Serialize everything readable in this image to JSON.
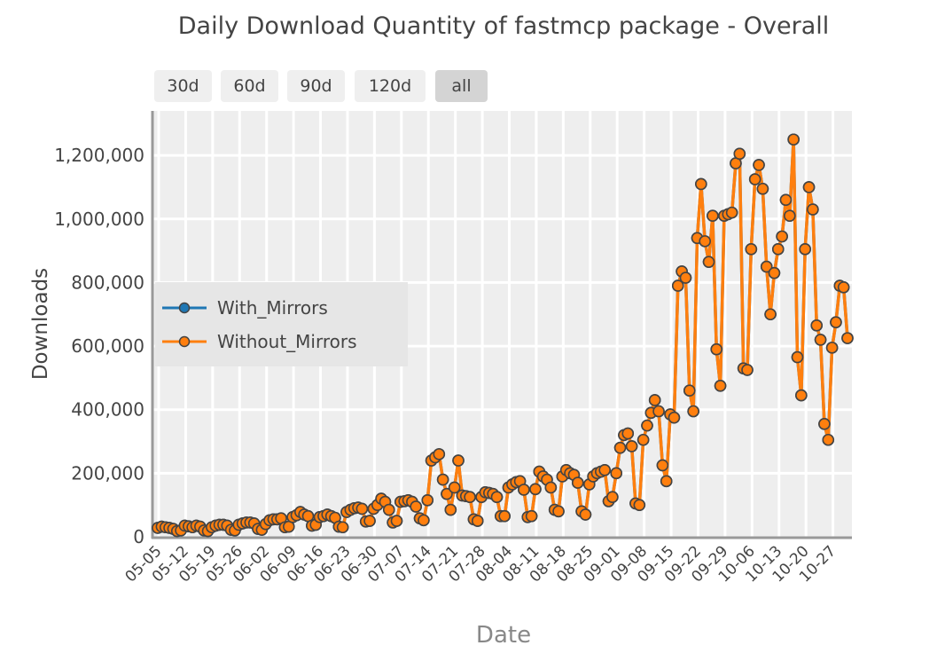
{
  "chart_data": {
    "type": "line",
    "title": "Daily Download Quantity of fastmcp package - Overall",
    "xlabel": "Date",
    "ylabel": "Downloads",
    "ylim": [
      0,
      1340000
    ],
    "yticks": [
      0,
      200000,
      400000,
      600000,
      800000,
      1000000,
      1200000
    ],
    "ytick_labels": [
      "0",
      "200,000",
      "400,000",
      "600,000",
      "800,000",
      "1,000,000",
      "1,200,000"
    ],
    "xtick_labels": [
      "05-05",
      "05-12",
      "05-19",
      "05-26",
      "06-02",
      "06-09",
      "06-16",
      "06-23",
      "06-30",
      "07-07",
      "07-14",
      "07-21",
      "07-28",
      "08-04",
      "08-11",
      "08-18",
      "08-25",
      "09-01",
      "09-08",
      "09-15",
      "09-22",
      "09-29",
      "10-06",
      "10-13",
      "10-20",
      "10-27"
    ],
    "grid": true,
    "legend_position": "left-middle",
    "x": [
      "05-05",
      "05-06",
      "05-07",
      "05-08",
      "05-09",
      "05-10",
      "05-11",
      "05-12",
      "05-13",
      "05-14",
      "05-15",
      "05-16",
      "05-17",
      "05-18",
      "05-19",
      "05-20",
      "05-21",
      "05-22",
      "05-23",
      "05-24",
      "05-25",
      "05-26",
      "05-27",
      "05-28",
      "05-29",
      "05-30",
      "05-31",
      "06-01",
      "06-02",
      "06-03",
      "06-04",
      "06-05",
      "06-06",
      "06-07",
      "06-08",
      "06-09",
      "06-10",
      "06-11",
      "06-12",
      "06-13",
      "06-14",
      "06-15",
      "06-16",
      "06-17",
      "06-18",
      "06-19",
      "06-20",
      "06-21",
      "06-22",
      "06-23",
      "06-24",
      "06-25",
      "06-26",
      "06-27",
      "06-28",
      "06-29",
      "06-30",
      "07-01",
      "07-02",
      "07-03",
      "07-04",
      "07-05",
      "07-06",
      "07-07",
      "07-08",
      "07-09",
      "07-10",
      "07-11",
      "07-12",
      "07-13",
      "07-14",
      "07-15",
      "07-16",
      "07-17",
      "07-18",
      "07-19",
      "07-20",
      "07-21",
      "07-22",
      "07-23",
      "07-24",
      "07-25",
      "07-26",
      "07-27",
      "07-28",
      "07-29",
      "07-30",
      "07-31",
      "08-01",
      "08-02",
      "08-03",
      "08-04",
      "08-05",
      "08-06",
      "08-07",
      "08-08",
      "08-09",
      "08-10",
      "08-11",
      "08-12",
      "08-13",
      "08-14",
      "08-15",
      "08-16",
      "08-17",
      "08-18",
      "08-19",
      "08-20",
      "08-21",
      "08-22",
      "08-23",
      "08-24",
      "08-25",
      "08-26",
      "08-27",
      "08-28",
      "08-29",
      "08-30",
      "08-31",
      "09-01",
      "09-02",
      "09-03",
      "09-04",
      "09-05",
      "09-06",
      "09-07",
      "09-08",
      "09-09",
      "09-10",
      "09-11",
      "09-12",
      "09-13",
      "09-14",
      "09-15",
      "09-16",
      "09-17",
      "09-18",
      "09-19",
      "09-20",
      "09-21",
      "09-22",
      "09-23",
      "09-24",
      "09-25",
      "09-26",
      "09-27",
      "09-28",
      "09-29",
      "09-30",
      "10-01",
      "10-02",
      "10-03",
      "10-04",
      "10-05",
      "10-06",
      "10-07",
      "10-08",
      "10-09",
      "10-10",
      "10-11",
      "10-12",
      "10-13",
      "10-14",
      "10-15",
      "10-16",
      "10-17",
      "10-18",
      "10-19",
      "10-20",
      "10-21",
      "10-22",
      "10-23",
      "10-24",
      "10-25",
      "10-26",
      "10-27",
      "10-28",
      "10-29",
      "10-30",
      "10-31"
    ],
    "series": [
      {
        "name": "With_Mirrors",
        "color": "#1f77b4",
        "values": [
          28000,
          32000,
          30000,
          28000,
          25000,
          18000,
          20000,
          35000,
          33000,
          30000,
          35000,
          32000,
          20000,
          18000,
          30000,
          35000,
          38000,
          38000,
          35000,
          22000,
          20000,
          38000,
          42000,
          45000,
          45000,
          42000,
          25000,
          22000,
          40000,
          52000,
          55000,
          55000,
          58000,
          30000,
          32000,
          62000,
          68000,
          78000,
          70000,
          65000,
          35000,
          38000,
          62000,
          65000,
          70000,
          65000,
          60000,
          32000,
          30000,
          78000,
          85000,
          90000,
          92000,
          88000,
          48000,
          50000,
          88000,
          100000,
          120000,
          110000,
          85000,
          45000,
          50000,
          110000,
          112000,
          115000,
          110000,
          95000,
          58000,
          52000,
          115000,
          240000,
          250000,
          260000,
          180000,
          135000,
          85000,
          155000,
          240000,
          130000,
          128000,
          125000,
          55000,
          50000,
          125000,
          140000,
          138000,
          135000,
          125000,
          65000,
          65000,
          155000,
          165000,
          172000,
          175000,
          148000,
          62000,
          65000,
          150000,
          205000,
          190000,
          180000,
          155000,
          85000,
          80000,
          190000,
          210000,
          200000,
          195000,
          170000,
          80000,
          70000,
          165000,
          190000,
          200000,
          205000,
          210000,
          112000,
          125000,
          200000,
          280000,
          320000,
          325000,
          285000,
          105000,
          100000,
          305000,
          350000,
          390000,
          430000,
          395000,
          225000,
          175000,
          385000,
          375000,
          790000,
          835000,
          815000,
          460000,
          395000,
          940000,
          1110000,
          930000,
          865000,
          1010000,
          590000,
          475000,
          1010000,
          1015000,
          1020000,
          1175000,
          1205000,
          530000,
          525000,
          905000,
          1125000,
          1170000,
          1095000,
          850000,
          700000,
          830000,
          905000,
          945000,
          1060000,
          1010000,
          1250000,
          565000,
          445000,
          905000,
          1100000,
          1030000,
          665000,
          620000,
          355000,
          305000,
          595000,
          675000,
          790000,
          785000,
          625000
        ]
      },
      {
        "name": "Without_Mirrors",
        "color": "#ff7f0e",
        "values": [
          28000,
          32000,
          30000,
          28000,
          25000,
          18000,
          20000,
          35000,
          33000,
          30000,
          35000,
          32000,
          20000,
          18000,
          30000,
          35000,
          38000,
          38000,
          35000,
          22000,
          20000,
          38000,
          42000,
          45000,
          45000,
          42000,
          25000,
          22000,
          40000,
          52000,
          55000,
          55000,
          58000,
          30000,
          32000,
          62000,
          68000,
          78000,
          70000,
          65000,
          35000,
          38000,
          62000,
          65000,
          70000,
          65000,
          60000,
          32000,
          30000,
          78000,
          85000,
          90000,
          92000,
          88000,
          48000,
          50000,
          88000,
          100000,
          120000,
          110000,
          85000,
          45000,
          50000,
          110000,
          112000,
          115000,
          110000,
          95000,
          58000,
          52000,
          115000,
          240000,
          250000,
          260000,
          180000,
          135000,
          85000,
          155000,
          240000,
          130000,
          128000,
          125000,
          55000,
          50000,
          125000,
          140000,
          138000,
          135000,
          125000,
          65000,
          65000,
          155000,
          165000,
          172000,
          175000,
          148000,
          62000,
          65000,
          150000,
          205000,
          190000,
          180000,
          155000,
          85000,
          80000,
          190000,
          210000,
          200000,
          195000,
          170000,
          80000,
          70000,
          165000,
          190000,
          200000,
          205000,
          210000,
          112000,
          125000,
          200000,
          280000,
          320000,
          325000,
          285000,
          105000,
          100000,
          305000,
          350000,
          390000,
          430000,
          395000,
          225000,
          175000,
          385000,
          375000,
          790000,
          835000,
          815000,
          460000,
          395000,
          940000,
          1110000,
          930000,
          865000,
          1010000,
          590000,
          475000,
          1010000,
          1015000,
          1020000,
          1175000,
          1205000,
          530000,
          525000,
          905000,
          1125000,
          1170000,
          1095000,
          850000,
          700000,
          830000,
          905000,
          945000,
          1060000,
          1010000,
          1250000,
          565000,
          445000,
          905000,
          1100000,
          1030000,
          665000,
          620000,
          355000,
          305000,
          595000,
          675000,
          790000,
          785000,
          625000
        ]
      }
    ]
  },
  "range_buttons": [
    {
      "label": "30d"
    },
    {
      "label": "60d"
    },
    {
      "label": "90d"
    },
    {
      "label": "120d"
    },
    {
      "label": "all",
      "active": true
    }
  ]
}
